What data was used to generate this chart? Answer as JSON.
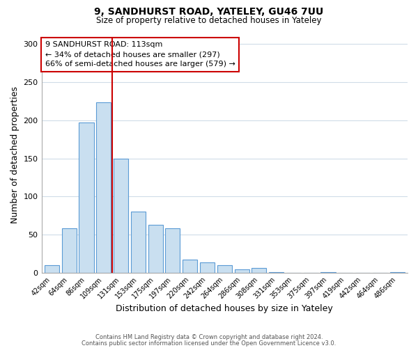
{
  "title": "9, SANDHURST ROAD, YATELEY, GU46 7UU",
  "subtitle": "Size of property relative to detached houses in Yateley",
  "xlabel": "Distribution of detached houses by size in Yateley",
  "ylabel": "Number of detached properties",
  "bar_labels": [
    "42sqm",
    "64sqm",
    "86sqm",
    "109sqm",
    "131sqm",
    "153sqm",
    "175sqm",
    "197sqm",
    "220sqm",
    "242sqm",
    "264sqm",
    "286sqm",
    "308sqm",
    "331sqm",
    "353sqm",
    "375sqm",
    "397sqm",
    "419sqm",
    "442sqm",
    "464sqm",
    "486sqm"
  ],
  "bar_values": [
    10,
    58,
    197,
    224,
    150,
    80,
    63,
    58,
    17,
    13,
    10,
    4,
    6,
    1,
    0,
    0,
    1,
    0,
    0,
    0,
    1
  ],
  "bar_color": "#c9dff0",
  "bar_edge_color": "#5b9bd5",
  "vline_x": 3.5,
  "vline_color": "#cc0000",
  "annotation_box_line1": "9 SANDHURST ROAD: 113sqm",
  "annotation_box_line2": "← 34% of detached houses are smaller (297)",
  "annotation_box_line3": "66% of semi-detached houses are larger (579) →",
  "annotation_box_color": "#cc0000",
  "ylim": [
    0,
    310
  ],
  "yticks": [
    0,
    50,
    100,
    150,
    200,
    250,
    300
  ],
  "footer_line1": "Contains HM Land Registry data © Crown copyright and database right 2024.",
  "footer_line2": "Contains public sector information licensed under the Open Government Licence v3.0.",
  "bg_color": "#ffffff",
  "grid_color": "#d0dce8"
}
